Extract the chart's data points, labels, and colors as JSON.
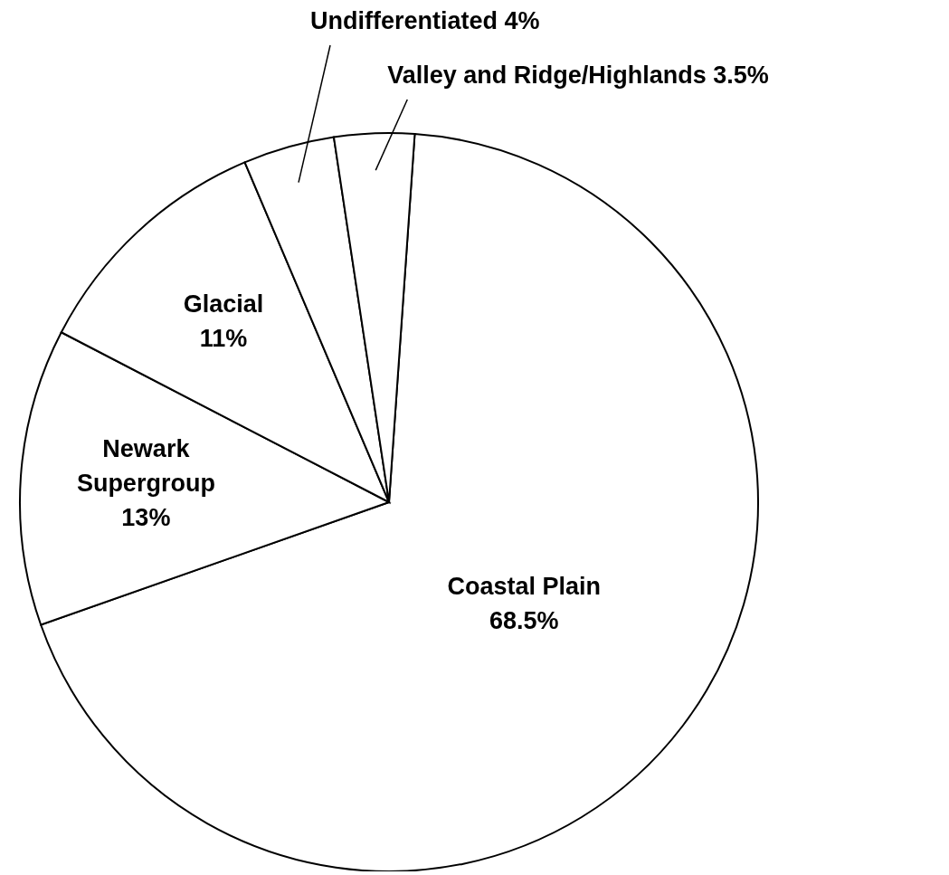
{
  "chart_data": {
    "type": "pie",
    "categories": [
      "Coastal Plain",
      "Newark Supergroup",
      "Glacial",
      "Undifferentiated",
      "Valley and Ridge/Highlands"
    ],
    "values": [
      68.5,
      13,
      11,
      4,
      3.5
    ],
    "value_labels": [
      "68.5%",
      "13%",
      "11%",
      "4%",
      "3.5%"
    ],
    "colors": [
      "#ffffff",
      "#ffffff",
      "#ffffff",
      "#ffffff",
      "#ffffff"
    ]
  }
}
